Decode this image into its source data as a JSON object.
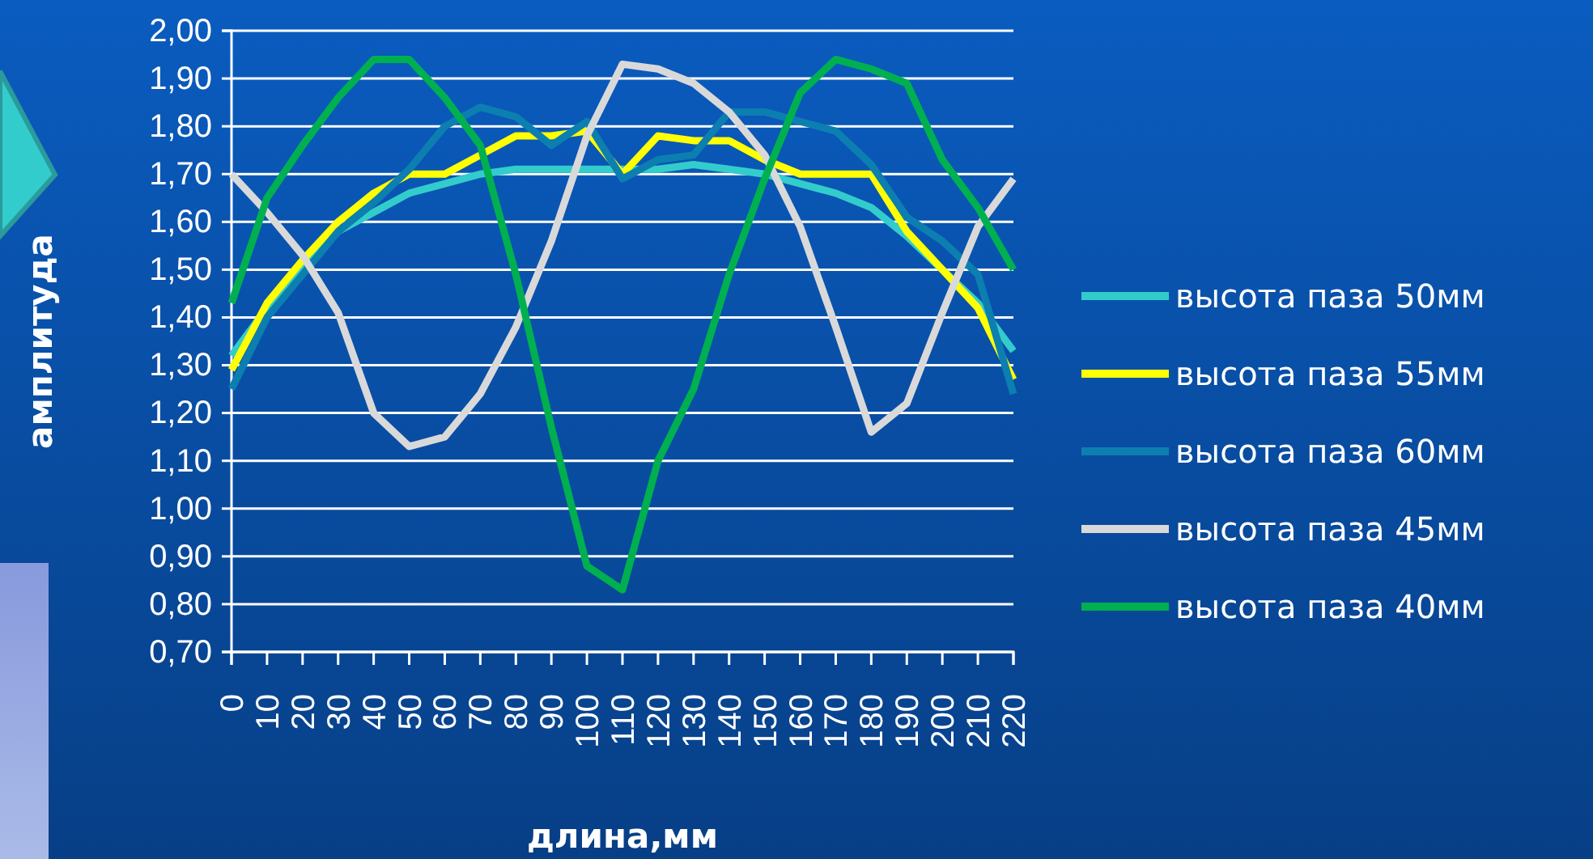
{
  "chart_data": {
    "type": "line",
    "xlabel": "длина,мм",
    "ylabel": "амплитуда",
    "categories": [
      "0",
      "10",
      "20",
      "30",
      "40",
      "50",
      "60",
      "70",
      "80",
      "90",
      "100",
      "110",
      "120",
      "130",
      "140",
      "150",
      "160",
      "170",
      "180",
      "190",
      "200",
      "210",
      "220"
    ],
    "series": [
      {
        "name": "высота паза 50мм",
        "color": "#33cccc",
        "values": [
          1.32,
          1.42,
          1.5,
          1.58,
          1.62,
          1.66,
          1.68,
          1.7,
          1.71,
          1.71,
          1.71,
          1.71,
          1.71,
          1.72,
          1.71,
          1.7,
          1.68,
          1.66,
          1.63,
          1.57,
          1.5,
          1.43,
          1.33
        ]
      },
      {
        "name": "высота паза 55мм",
        "color": "#ffff00",
        "values": [
          1.29,
          1.43,
          1.52,
          1.6,
          1.66,
          1.7,
          1.7,
          1.74,
          1.78,
          1.78,
          1.79,
          1.7,
          1.78,
          1.77,
          1.77,
          1.73,
          1.7,
          1.7,
          1.7,
          1.58,
          1.5,
          1.42,
          1.27
        ]
      },
      {
        "name": "высота паза 60мм",
        "color": "#0c7fb0",
        "values": [
          1.25,
          1.4,
          1.49,
          1.58,
          1.64,
          1.71,
          1.8,
          1.84,
          1.82,
          1.76,
          1.81,
          1.69,
          1.73,
          1.74,
          1.83,
          1.83,
          1.81,
          1.79,
          1.72,
          1.61,
          1.56,
          1.49,
          1.24
        ]
      },
      {
        "name": "высота паза 45мм",
        "color": "#d9d9d9",
        "values": [
          1.7,
          1.62,
          1.53,
          1.41,
          1.2,
          1.13,
          1.15,
          1.24,
          1.38,
          1.56,
          1.78,
          1.93,
          1.92,
          1.89,
          1.83,
          1.74,
          1.59,
          1.38,
          1.16,
          1.22,
          1.41,
          1.59,
          1.69
        ]
      },
      {
        "name": "высота паза 40мм",
        "color": "#00b050",
        "values": [
          1.43,
          1.65,
          1.76,
          1.86,
          1.94,
          1.94,
          1.86,
          1.76,
          1.49,
          1.17,
          0.88,
          0.83,
          1.1,
          1.25,
          1.49,
          1.69,
          1.87,
          1.94,
          1.92,
          1.89,
          1.73,
          1.63,
          1.5
        ]
      }
    ],
    "ylim": [
      0.7,
      2.0
    ],
    "yticks": [
      {
        "value": 0.7,
        "label": "0,70"
      },
      {
        "value": 0.8,
        "label": "0,80"
      },
      {
        "value": 0.9,
        "label": "0,90"
      },
      {
        "value": 1.0,
        "label": "1,00"
      },
      {
        "value": 1.1,
        "label": "1,10"
      },
      {
        "value": 1.2,
        "label": "1,20"
      },
      {
        "value": 1.3,
        "label": "1,30"
      },
      {
        "value": 1.4,
        "label": "1,40"
      },
      {
        "value": 1.5,
        "label": "1,50"
      },
      {
        "value": 1.6,
        "label": "1,60"
      },
      {
        "value": 1.7,
        "label": "1,70"
      },
      {
        "value": 1.8,
        "label": "1,80"
      },
      {
        "value": 1.9,
        "label": "1,90"
      },
      {
        "value": 2.0,
        "label": "2,00"
      }
    ],
    "grid": "y",
    "legend": "right",
    "marker": "none",
    "line_style": "solid"
  }
}
